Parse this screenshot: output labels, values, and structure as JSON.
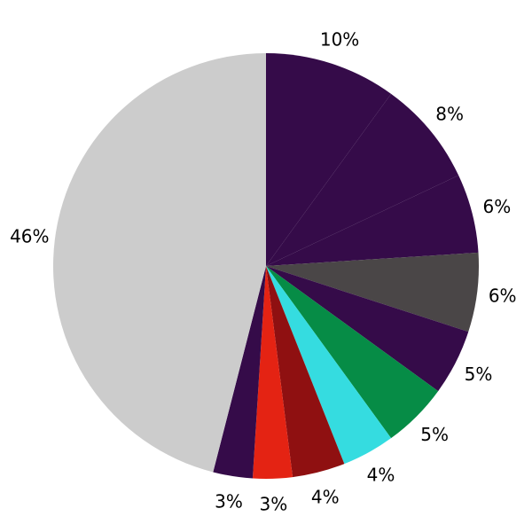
{
  "chart_data": {
    "type": "pie",
    "title": "",
    "start_angle": "top (12 o'clock)",
    "direction": "clockwise",
    "legend": "none",
    "background_color": "#ffffff",
    "label_color": "#000000",
    "center": [
      300,
      300
    ],
    "radius": 240,
    "label_distance": 1.12,
    "slices": [
      {
        "label": "10%",
        "value": 10,
        "color": "#350b49"
      },
      {
        "label": "8%",
        "value": 8,
        "color": "#350b49"
      },
      {
        "label": "6%",
        "value": 6,
        "color": "#350b49"
      },
      {
        "label": "6%",
        "value": 6,
        "color": "#4a4647"
      },
      {
        "label": "5%",
        "value": 5,
        "color": "#350b49"
      },
      {
        "label": "5%",
        "value": 5,
        "color": "#068c46"
      },
      {
        "label": "4%",
        "value": 4,
        "color": "#35dce0"
      },
      {
        "label": "4%",
        "value": 4,
        "color": "#8f1011"
      },
      {
        "label": "3%",
        "value": 3,
        "color": "#e42313"
      },
      {
        "label": "3%",
        "value": 3,
        "color": "#350b49"
      },
      {
        "label": "46%",
        "value": 46,
        "color": "#cccccc"
      }
    ]
  }
}
